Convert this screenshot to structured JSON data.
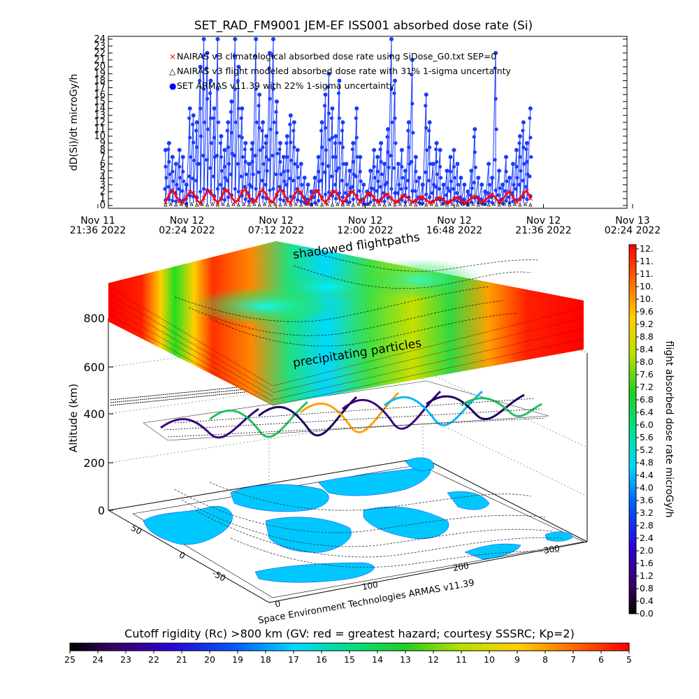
{
  "chart_data": [
    {
      "type": "scatter",
      "title": "SET_RAD_FM9001  JEM-EF ISS001 absorbed dose rate (Si)",
      "ylabel": "dD(Si)/dt microGy/h",
      "ylim": [
        0,
        24
      ],
      "yticks": [
        "0",
        "1",
        "2",
        "3",
        "4",
        "5",
        "6",
        "7",
        "8",
        "9",
        "10",
        "11",
        "12",
        "13",
        "14",
        "15",
        "16",
        "17",
        "18",
        "19",
        "20",
        "21",
        "22",
        "23",
        "24"
      ],
      "xticks": [
        {
          "line1": "Nov 11",
          "line2": "21:36 2022"
        },
        {
          "line1": "Nov 12",
          "line2": "02:24 2022"
        },
        {
          "line1": "Nov 12",
          "line2": "07:12 2022"
        },
        {
          "line1": "Nov 12",
          "line2": "12:00 2022"
        },
        {
          "line1": "Nov 12",
          "line2": "16:48 2022"
        },
        {
          "line1": "Nov 12",
          "line2": "21:36 2022"
        },
        {
          "line1": "Nov 13",
          "line2": "02:24 2022"
        }
      ],
      "legend": [
        {
          "marker": "×",
          "color": "#ff0000",
          "text": "NAIRAS v3 climatological absorbed dose rate using SiDose_G0.txt SEP=0"
        },
        {
          "marker": "△",
          "color": "#000000",
          "text": "NAIRAS v3 flight modeled absorbed dose rate with 31% 1-sigma uncertainty"
        },
        {
          "marker": "●",
          "color": "#0000ff",
          "text": "SET ARMAS v11.39 with 22% 1-sigma uncertainty"
        }
      ],
      "series": [
        {
          "marker": "dot",
          "color": "#1a3cff",
          "x_hours": [
            0.0,
            0.2,
            0.4,
            0.6,
            0.8,
            1.0,
            1.2,
            1.4,
            1.6,
            1.8,
            2.0,
            2.2,
            2.4,
            2.6,
            2.8,
            3.0,
            3.2,
            3.4,
            3.6,
            3.8,
            4.0,
            4.2,
            4.4,
            4.6,
            4.8,
            5.0,
            5.2,
            5.4,
            5.6,
            5.8,
            6.0,
            6.2,
            6.4,
            6.6,
            6.8,
            7.0,
            7.2,
            7.4,
            7.6,
            7.8,
            8.0,
            8.2,
            8.4,
            8.6,
            8.8,
            9.0,
            9.2,
            9.4,
            9.6,
            9.8,
            10.0,
            10.2,
            10.4,
            10.6,
            10.8,
            11.0,
            11.2,
            11.4,
            11.6,
            11.8,
            12.0,
            12.2,
            12.4,
            12.6,
            12.8,
            13.0,
            13.2,
            13.4,
            13.6,
            13.8,
            14.0,
            14.2,
            14.4,
            14.6,
            14.8,
            15.0,
            15.2,
            15.4,
            15.6,
            15.8,
            16.0,
            16.2,
            16.4,
            16.6,
            16.8,
            17.0,
            17.2,
            17.4,
            17.6,
            17.8,
            18.0,
            18.2,
            18.4,
            18.6,
            18.8,
            19.0,
            19.2,
            19.4,
            19.6,
            19.8,
            20.0,
            20.2,
            20.4,
            20.6,
            20.8,
            21.0
          ],
          "values": [
            8,
            9,
            7,
            6,
            8,
            7,
            3,
            14,
            13,
            12,
            20,
            24,
            22,
            18,
            14,
            24,
            10,
            8,
            12,
            15,
            24,
            20,
            14,
            9,
            6,
            9,
            24,
            16,
            12,
            10,
            22,
            24,
            15,
            9,
            7,
            10,
            13,
            12,
            8,
            6,
            4,
            3,
            2,
            4,
            7,
            12,
            16,
            19,
            14,
            10,
            18,
            12,
            6,
            5,
            9,
            14,
            7,
            3,
            2,
            5,
            8,
            7,
            9,
            6,
            11,
            24,
            18,
            6,
            8,
            5,
            12,
            21,
            7,
            4,
            3,
            16,
            12,
            6,
            9,
            8,
            3,
            5,
            7,
            8,
            6,
            4,
            3,
            2,
            5,
            11,
            4,
            3,
            2,
            6,
            4,
            22,
            5,
            3,
            7,
            4,
            6,
            8,
            10,
            12,
            9,
            14
          ]
        },
        {
          "marker": "triangle",
          "color": "#000000",
          "x_hours": [
            0.0,
            0.3,
            0.6,
            0.9,
            1.2,
            1.5,
            1.8,
            2.1,
            2.4,
            2.7,
            3.0,
            3.3,
            3.6,
            3.9,
            4.2,
            4.5,
            4.8,
            5.1,
            5.4,
            5.7,
            6.0,
            6.3,
            6.6,
            6.9,
            7.2,
            7.5,
            7.8,
            8.1,
            8.4,
            8.7,
            9.0,
            9.3,
            9.6,
            9.9,
            10.2,
            10.5,
            10.8,
            11.1,
            11.4,
            11.7,
            12.0,
            12.3,
            12.6,
            12.9,
            13.2,
            13.5,
            13.8,
            14.1,
            14.4,
            14.7,
            15.0,
            15.3,
            15.6,
            15.9,
            16.2,
            16.5,
            16.8,
            17.1,
            17.4,
            17.7,
            18.0,
            18.3,
            18.6,
            18.9,
            19.2,
            19.5,
            19.8,
            20.1,
            20.4,
            20.7,
            21.0
          ],
          "values": [
            0.1,
            0.2,
            0.1,
            0.2,
            0.1,
            0.2,
            0.1,
            0.2,
            0.1,
            0.2,
            0.1,
            0.2,
            0.1,
            0.2,
            0.1,
            0.2,
            0.1,
            0.2,
            0.1,
            0.2,
            0.1,
            0.2,
            0.1,
            0.2,
            0.1,
            0.2,
            0.1,
            0.2,
            0.1,
            0.2,
            0.1,
            0.2,
            0.1,
            0.2,
            0.1,
            0.2,
            0.1,
            0.2,
            0.1,
            0.2,
            0.1,
            0.2,
            0.1,
            0.2,
            0.1,
            0.2,
            0.1,
            0.2,
            0.1,
            0.2,
            0.1,
            0.2,
            0.1,
            0.2,
            0.1,
            0.2,
            0.1,
            0.2,
            0.1,
            0.2,
            0.1,
            0.2,
            0.1,
            0.2,
            0.1,
            0.2,
            0.1,
            0.2,
            0.1,
            0.2,
            0.1
          ]
        },
        {
          "marker": "cross",
          "color": "#ff0000",
          "x_hours": [
            0.0,
            0.2,
            0.4,
            0.6,
            0.8,
            1.0,
            1.2,
            1.4,
            1.6,
            1.8,
            2.0,
            2.2,
            2.4,
            2.6,
            2.8,
            3.0,
            3.2,
            3.4,
            3.6,
            3.8,
            4.0,
            4.2,
            4.4,
            4.6,
            4.8,
            5.0,
            5.2,
            5.4,
            5.6,
            5.8,
            6.0,
            6.2,
            6.4,
            6.6,
            6.8,
            7.0,
            7.2,
            7.4,
            7.6,
            7.8,
            8.0,
            8.2,
            8.4,
            8.6,
            8.8,
            9.0,
            9.2,
            9.4,
            9.6,
            9.8,
            10.0,
            10.2,
            10.4,
            10.6,
            10.8,
            11.0,
            11.2,
            11.4,
            11.6,
            11.8,
            12.0,
            12.2,
            12.4,
            12.6,
            12.8,
            13.0,
            13.2,
            13.4,
            13.6,
            13.8,
            14.0,
            14.2,
            14.4,
            14.6,
            14.8,
            15.0,
            15.2,
            15.4,
            15.6,
            15.8,
            16.0,
            16.2,
            16.4,
            16.6,
            16.8,
            17.0,
            17.2,
            17.4,
            17.6,
            17.8,
            18.0,
            18.2,
            18.4,
            18.6,
            18.8,
            19.0,
            19.2,
            19.4,
            19.6,
            19.8,
            20.0,
            20.2,
            20.4,
            20.6,
            20.8,
            21.0
          ],
          "values": [
            0.5,
            1.5,
            2.2,
            1.4,
            0.6,
            0.4,
            1.2,
            2.0,
            1.8,
            0.8,
            0.3,
            1.1,
            2.1,
            2.0,
            1.0,
            0.4,
            1.0,
            2.2,
            2.1,
            1.2,
            0.5,
            0.8,
            2.0,
            2.3,
            1.3,
            0.5,
            0.7,
            1.8,
            2.3,
            1.5,
            0.6,
            0.5,
            1.6,
            2.4,
            1.8,
            0.7,
            0.4,
            1.4,
            2.2,
            1.9,
            0.8,
            0.3,
            1.2,
            2.1,
            2.0,
            1.0,
            0.4,
            1.1,
            2.0,
            2.0,
            1.1,
            0.4,
            1.0,
            1.9,
            2.0,
            1.2,
            0.5,
            0.8,
            1.7,
            1.8,
            1.1,
            0.5,
            0.7,
            1.5,
            1.6,
            1.0,
            0.5,
            0.6,
            1.3,
            1.4,
            0.9,
            0.5,
            0.6,
            1.1,
            1.2,
            0.8,
            0.4,
            0.5,
            1.0,
            1.1,
            0.8,
            0.4,
            0.5,
            1.0,
            1.1,
            0.8,
            0.4,
            0.6,
            1.1,
            1.3,
            0.9,
            0.5,
            0.7,
            1.3,
            1.6,
            1.1,
            0.5,
            0.8,
            1.6,
            2.0,
            1.2,
            0.5,
            0.9,
            1.8,
            2.1,
            1.0
          ]
        }
      ]
    },
    {
      "type": "heatmap",
      "title": "",
      "zlabel": "Altitude (km)",
      "zticks": [
        "0",
        "200",
        "400",
        "600",
        "800"
      ],
      "lat_ticks": [
        "-50",
        "0",
        "50"
      ],
      "lon_ticks": [
        "0",
        "100",
        "200",
        "300"
      ],
      "annotations": [
        "shadowed flightpaths",
        "precipitating particles"
      ],
      "credit": "Space Environment Technologies ARMAS v11.39"
    },
    {
      "type": "heatmap",
      "title": "flight absorbed dose rate microGy/h",
      "colorbar_ticks": [
        "12.",
        "11.",
        "11.",
        "10.",
        "10.",
        "9.6",
        "9.2",
        "8.8",
        "8.4",
        "8.0",
        "7.6",
        "7.2",
        "6.8",
        "6.4",
        "6.0",
        "5.6",
        "5.2",
        "4.8",
        "4.4",
        "4.0",
        "3.6",
        "3.2",
        "2.8",
        "2.4",
        "2.0",
        "1.6",
        "1.2",
        "0.8",
        "0.4",
        "0.0"
      ],
      "range": [
        0,
        12
      ]
    },
    {
      "type": "heatmap",
      "title": "Cutoff rigidity (Rc) >800 km (GV: red = greatest hazard; courtesy SSSRC; Kp=2)",
      "colorbar_ticks": [
        "25",
        "24",
        "23",
        "22",
        "21",
        "20",
        "19",
        "18",
        "17",
        "16",
        "15",
        "14",
        "13",
        "12",
        "11",
        "10",
        "9",
        "8",
        "7",
        "6",
        "5"
      ],
      "range": [
        25,
        5
      ]
    }
  ]
}
